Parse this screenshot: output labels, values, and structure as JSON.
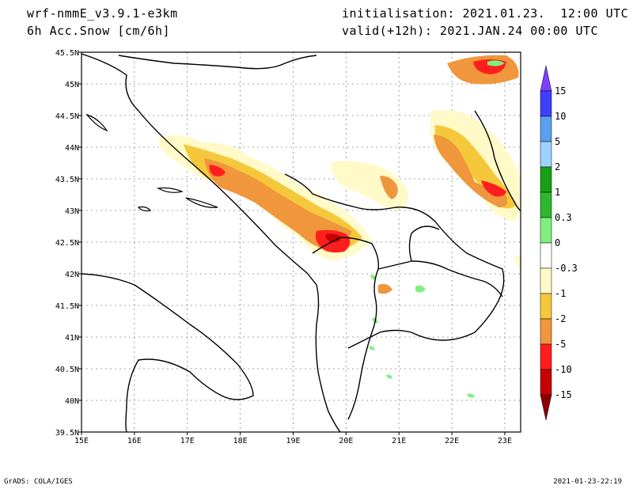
{
  "header": {
    "model": "wrf-nmmE_v3.9.1-e3km",
    "variable": "6h Acc.Snow [cm/6h]",
    "initialisation": "initialisation: 2021.01.23.  12:00 UTC",
    "valid": "valid(+12h): 2021.JAN.24 00:00 UTC"
  },
  "map": {
    "lon_ticks": [
      "15E",
      "16E",
      "17E",
      "18E",
      "19E",
      "20E",
      "21E",
      "22E",
      "23E"
    ],
    "lat_ticks": [
      "39.5N",
      "40N",
      "40.5N",
      "41N",
      "41.5N",
      "42N",
      "42.5N",
      "43N",
      "43.5N",
      "44N",
      "44.5N",
      "45N",
      "45.5N"
    ],
    "lon_range": [
      15,
      23.3
    ],
    "lat_range": [
      39.5,
      45.5
    ]
  },
  "colorbar": {
    "labels": [
      "15",
      "10",
      "5",
      "2",
      "1",
      "0.3",
      "0",
      "-0.3",
      "-1",
      "-2",
      "-5",
      "-10",
      "-15"
    ],
    "colors_top_to_bottom": [
      "#7f3fff",
      "#3f3fff",
      "#5aa0f0",
      "#a0d2ff",
      "#16a016",
      "#2db82d",
      "#7ff07f",
      "#ffffff",
      "#fffac8",
      "#f5c83c",
      "#f0963c",
      "#ff1e1e",
      "#c80000",
      "#8c0000"
    ]
  },
  "snow_colors": {
    "light": "#fffac8",
    "yellow": "#f5c83c",
    "orange": "#f0963c",
    "red": "#ff1e1e",
    "darkred": "#c80000",
    "green": "#7ff07f"
  },
  "footer": {
    "left": "GrADS: COLA/IGES",
    "right": "2021-01-23-22:19"
  }
}
